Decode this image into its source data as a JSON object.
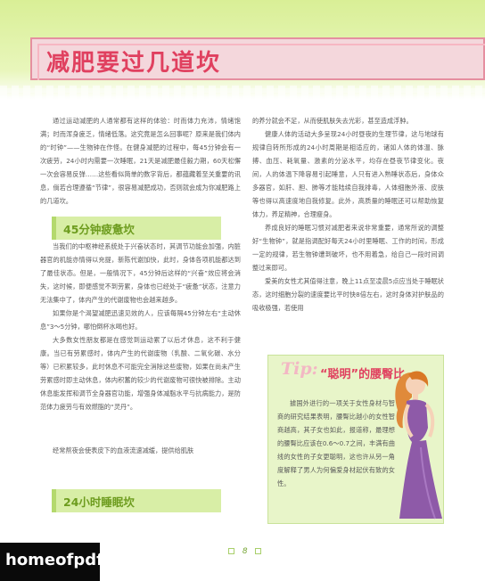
{
  "header": {
    "title": "减肥要过几道坎",
    "accent_color": "#e0405f",
    "band_color": "#d9ef96"
  },
  "left_column": {
    "intro_paragraphs": [
      "通过运动减肥的人通常都有这样的体验：时而体力充沛，情绪饱满；时而浑身疲乏，情绪低落。这究竟是怎么回事呢？原来是我们体内的“时钟”——生物钟在作怪。在健身减肥的过程中，每45分钟会有一次疲劳，24小时内需要一次睡眠，21天是减肥最佳毅力期，60天松懈一次会容易反弹……这些看似简单的数字背后，都蕴藏着至关重要的讯息，倘若合理遵循“节律”，很容易减肥成功，否则就会成为你减肥路上的几道坎。"
    ],
    "section1_title": "45分钟疲惫坎",
    "section1_paragraphs": [
      "当我们的中枢神经系统处于兴奋状态时，其调节功能会加强，内脏器官的机能亦情得以充提，新陈代谢加快，此时，身体各项机能都达到了最佳状态。但是，一般情况下，45分钟后这样的“兴奋”效应将会消失，这时候，即便感觉不到劳累，身体也已经处于“疲惫”状态，注意力无法集中了，体内产生的代谢废物也会越来越多。",
      "如果你是个渴望减肥迅速见效的人，应该每隔45分钟左右“主动休息”3～5分钟，哪怕倒杯水喝也好。",
      "大多数女性朋友都是在感觉到运动累了以后才休息，这不利于健康。当已有劳累感时，体内产生的代谢废物（乳酸、二氧化碳、水分等）已积累较多，此时休息不可能完全消除这些废物，如果在尚未产生劳累感时即主动休息，体内积蓄的较少的代谢废物可很快被排除。主动休息能发挥和调节全身器官功能，增强身体减脂水平与抗病能力，是防范体力疲劳与有效燃脂的“灵丹”。"
    ],
    "section2_title": "24小时睡眠坎",
    "section2_paragraphs": [
      "经常熬夜会使表皮下的血液流速减缓，提供给肌肤"
    ]
  },
  "right_column": {
    "paragraphs": [
      "的养分就会不足，从而使肌肤失去光彩，甚至造成浮肿。",
      "健康人体的活动大多呈现24小时昼夜的生理节律，这与地球有规律自转所形成的24小时周期是相适应的，诸如人体的体温、脉搏、血压、耗氧量、激素的分泌水平，均存在昼夜节律变化。夜间，人的体温下降容易引起睡意，人只有进入熟睡状态后，身体众多器官，如肝、胆、肺等才能陆续自我排毒，人体细胞外液、皮肤等也得以高速度地自我修复。此外，高质量的睡眠还可以帮助恢复体力，养足精神，合理瘦身。",
      "养成良好的睡眠习惯对减肥者来说非常重要，通常所说的调整好“生物钟”，就是指调配好每天24小时里睡眠、工作的时间，形成一定的规律，若生物钟遭到破坏，也不用着急，给自己一段时间调整过来即可。",
      "爱美的女性尤其值得注意，晚上11点至凌晨5点应当处于睡眠状态，这时细胞分裂的速度要比平时快8倍左右，这时身体对护肤品的吸收极强，若使用"
    ]
  },
  "tip": {
    "label": "Tip:",
    "title": "“聪明”的腰臀比",
    "text": "據国外进行的一项关于女性身材与智商的研究结果表明，腰臀比越小的女性智商越高，其子女也如此，报道称，最理想的腰臀比应该在0.6～0.7之间，丰满有曲线的女性的子女更聪明，这也许从另一角度解释了男人为何偏爱身材起伏有致的女性。",
    "dress_color": "#8e5aa8",
    "hair_color": "#e08a3a"
  },
  "footer": {
    "page_number": "8"
  },
  "watermark": {
    "text": "homeofpdf.com"
  }
}
